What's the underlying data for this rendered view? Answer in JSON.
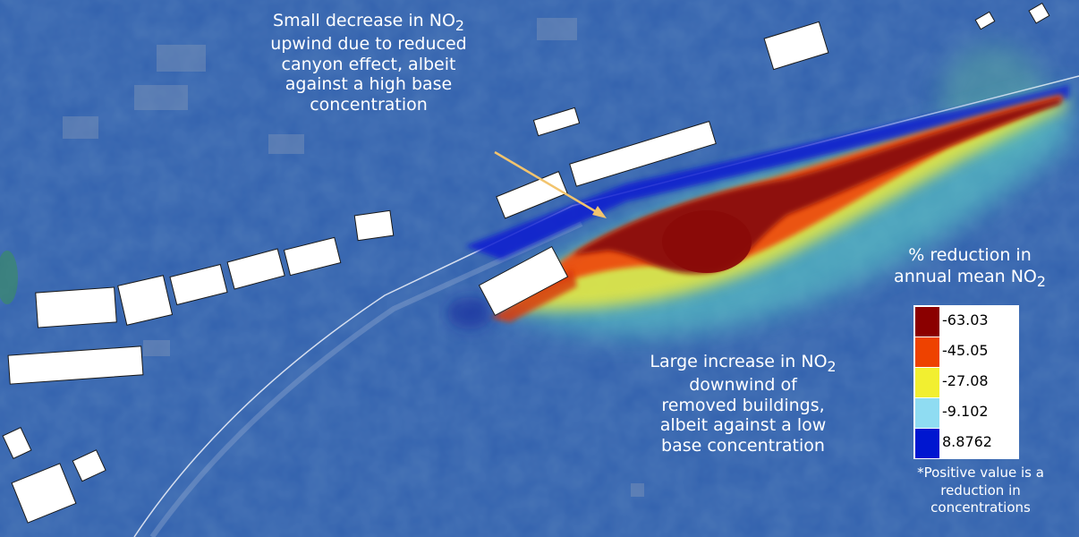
{
  "annotations": {
    "upwind": {
      "line1_prefix": "Small decrease in NO",
      "line1_sub": "2",
      "rest": [
        "upwind due to reduced",
        "canyon effect, albeit",
        "against a high base",
        "concentration"
      ]
    },
    "downwind": {
      "line1_prefix": "Large increase in NO",
      "line1_sub": "2",
      "rest": [
        "downwind of",
        "removed buildings,",
        "albeit against a low",
        "base concentration"
      ]
    }
  },
  "legend": {
    "title_line1": "% reduction in",
    "title_line2_prefix": "annual mean NO",
    "title_line2_sub": "2",
    "items": [
      {
        "label": "-63.03",
        "color": "#8b0000"
      },
      {
        "label": "-45.05",
        "color": "#ee4200"
      },
      {
        "label": "-27.08",
        "color": "#f2ef30"
      },
      {
        "label": "-9.102",
        "color": "#8fdcf2"
      },
      {
        "label": "8.8762",
        "color": "#0016d0"
      }
    ],
    "note": [
      "*Positive value is a",
      "reduction in",
      "concentrations"
    ]
  },
  "colors": {
    "overlay_base": "#2f5fc4",
    "annotation_arrow": "#f2c46e",
    "building_fill": "#ffffff",
    "road_line": "#e8ecf6"
  }
}
